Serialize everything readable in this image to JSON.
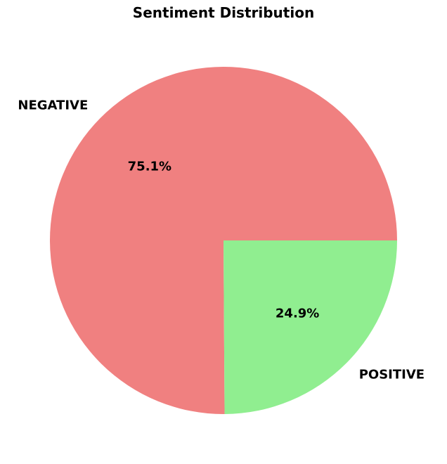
{
  "chart_data": {
    "type": "pie",
    "title": "Sentiment Distribution",
    "categories": [
      "NEGATIVE",
      "POSITIVE"
    ],
    "values": [
      75.1,
      24.9
    ],
    "percent_labels": [
      "75.1%",
      "24.9%"
    ],
    "colors": [
      "#f08080",
      "#90ee90"
    ]
  }
}
